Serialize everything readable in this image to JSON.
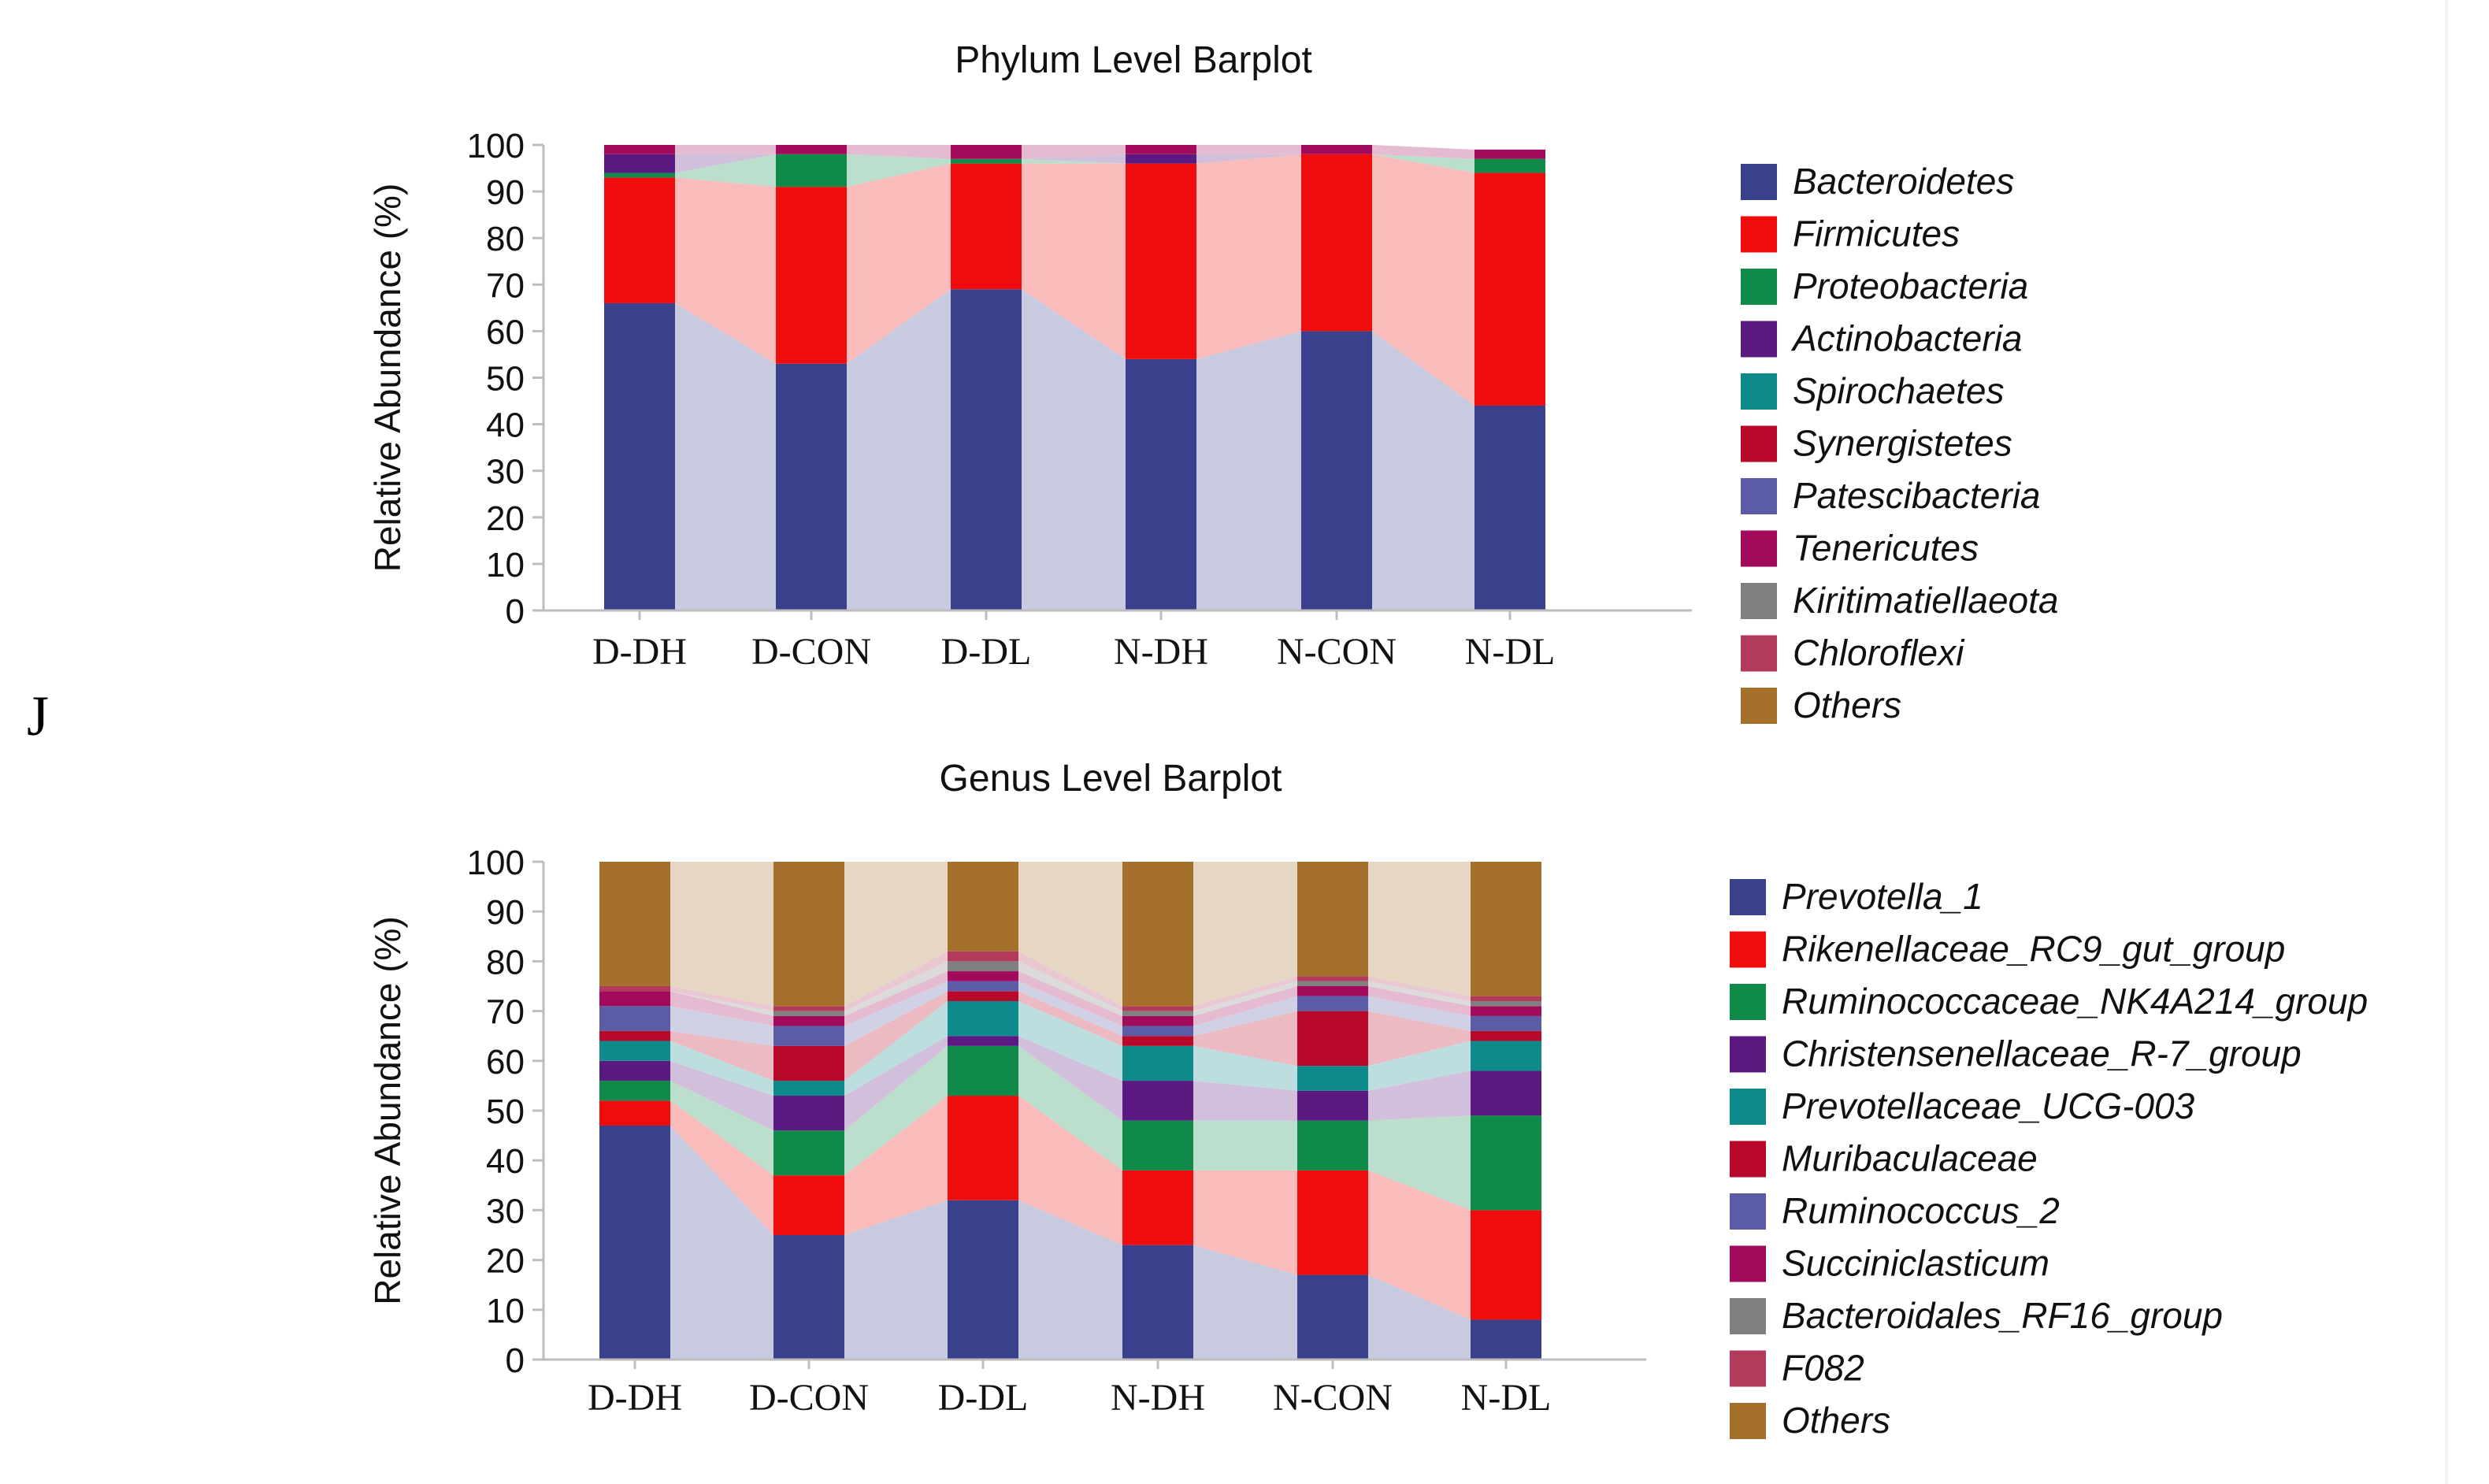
{
  "figure": {
    "panel_label": "J"
  },
  "chart_data": [
    {
      "type": "bar",
      "stacked": true,
      "title": "Phylum Level Barplot",
      "xlabel": "",
      "ylabel": "Relative Abundance (%)",
      "ylim": [
        0,
        100
      ],
      "yticks": [
        "0",
        "10",
        "20",
        "30",
        "40",
        "50",
        "60",
        "70",
        "80",
        "90",
        "100"
      ],
      "categories": [
        "D-DH",
        "D-CON",
        "D-DL",
        "N-DH",
        "N-CON",
        "N-DL"
      ],
      "series": [
        {
          "name": "Bacteroidetes",
          "color": "#39408c",
          "values": [
            66,
            53,
            69,
            54,
            60,
            44
          ]
        },
        {
          "name": "Firmicutes",
          "color": "#ee0c0c",
          "values": [
            27,
            38,
            27,
            42,
            38,
            50
          ]
        },
        {
          "name": "Proteobacteria",
          "color": "#0f8a49",
          "values": [
            1,
            7,
            1,
            0,
            0,
            3
          ]
        },
        {
          "name": "Actinobacteria",
          "color": "#5a1a82",
          "values": [
            4,
            0,
            0,
            2,
            0,
            0
          ]
        },
        {
          "name": "Spirochaetes",
          "color": "#0e8a8a",
          "values": [
            0,
            0,
            0,
            0,
            0,
            0
          ]
        },
        {
          "name": "Synergistetes",
          "color": "#b8092a",
          "values": [
            0,
            0,
            0,
            0,
            0,
            0
          ]
        },
        {
          "name": "Patescibacteria",
          "color": "#5c5ba6",
          "values": [
            0,
            0,
            0,
            0,
            0,
            0
          ]
        },
        {
          "name": "Tenericutes",
          "color": "#a20b5c",
          "values": [
            2,
            2,
            3,
            2,
            2,
            2
          ]
        },
        {
          "name": "Kiritimatiellaeota",
          "color": "#808080",
          "values": [
            0,
            0,
            0,
            0,
            0,
            0
          ]
        },
        {
          "name": "Chloroflexi",
          "color": "#b23a5a",
          "values": [
            0,
            0,
            0,
            0,
            0,
            0
          ]
        },
        {
          "name": "Others",
          "color": "#a4702c",
          "values": [
            0,
            0,
            0,
            0,
            0,
            0
          ]
        }
      ]
    },
    {
      "type": "bar",
      "stacked": true,
      "title": "Genus Level Barplot",
      "xlabel": "",
      "ylabel": "Relative Abundance (%)",
      "ylim": [
        0,
        100
      ],
      "yticks": [
        "0",
        "10",
        "20",
        "30",
        "40",
        "50",
        "60",
        "70",
        "80",
        "90",
        "100"
      ],
      "categories": [
        "D-DH",
        "D-CON",
        "D-DL",
        "N-DH",
        "N-CON",
        "N-DL"
      ],
      "series": [
        {
          "name": "Prevotella_1",
          "color": "#39408c",
          "values": [
            47,
            25,
            32,
            23,
            17,
            8
          ]
        },
        {
          "name": "Rikenellaceae_RC9_gut_group",
          "color": "#ee0c0c",
          "values": [
            5,
            12,
            21,
            15,
            21,
            22
          ]
        },
        {
          "name": "Ruminococcaceae_NK4A214_group",
          "color": "#0f8a49",
          "values": [
            4,
            9,
            10,
            10,
            10,
            19
          ]
        },
        {
          "name": "Christensenellaceae_R-7_group",
          "color": "#5a1a82",
          "values": [
            4,
            7,
            2,
            8,
            6,
            9
          ]
        },
        {
          "name": "Prevotellaceae_UCG-003",
          "color": "#0e8a8a",
          "values": [
            4,
            3,
            7,
            7,
            5,
            6
          ]
        },
        {
          "name": "Muribaculaceae",
          "color": "#b8092a",
          "values": [
            2,
            7,
            2,
            2,
            11,
            2
          ]
        },
        {
          "name": "Ruminococcus_2",
          "color": "#5c5ba6",
          "values": [
            5,
            4,
            2,
            2,
            3,
            3
          ]
        },
        {
          "name": "Succiniclasticum",
          "color": "#a20b5c",
          "values": [
            3,
            2,
            2,
            2,
            2,
            2
          ]
        },
        {
          "name": "Bacteroidales_RF16_group",
          "color": "#808080",
          "values": [
            0,
            1,
            2,
            1,
            1,
            1
          ]
        },
        {
          "name": "F082",
          "color": "#b23a5a",
          "values": [
            1,
            1,
            2,
            1,
            1,
            1
          ]
        },
        {
          "name": "Others",
          "color": "#a4702c",
          "values": [
            25,
            29,
            18,
            29,
            23,
            27
          ]
        }
      ]
    }
  ]
}
